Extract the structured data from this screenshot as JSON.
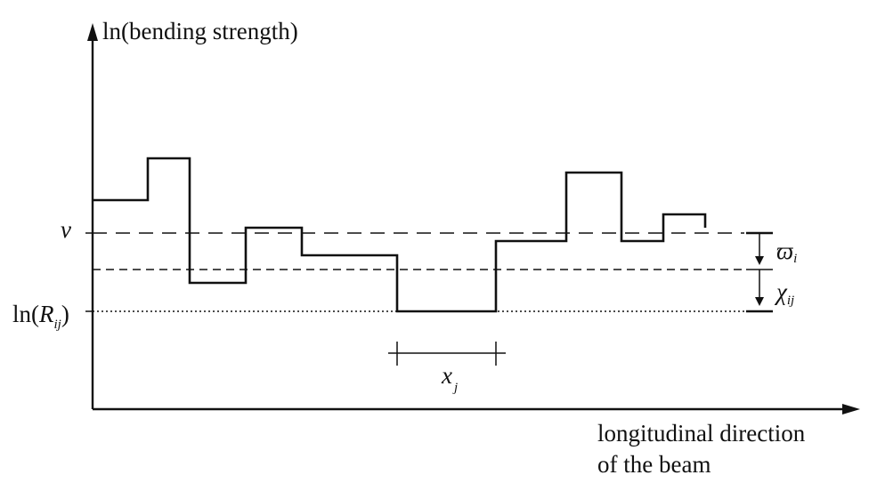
{
  "axes": {
    "y_label": "ln(bending strength)",
    "x_label_line1": "longitudinal direction",
    "x_label_line2": "of the beam"
  },
  "levels": {
    "nu_symbol": "ν",
    "ln_r_prefix": "ln(",
    "ln_r_symbol": "R",
    "ln_r_subscript": "ij",
    "ln_r_suffix": ")"
  },
  "dimensions": {
    "omega_symbol": "ϖ",
    "omega_subscript": "i",
    "chi_symbol": "χ",
    "chi_subscript": "ij",
    "x_symbol": "x",
    "x_subscript": "j"
  },
  "colors": {
    "ink": "#111111",
    "background": "#ffffff"
  }
}
